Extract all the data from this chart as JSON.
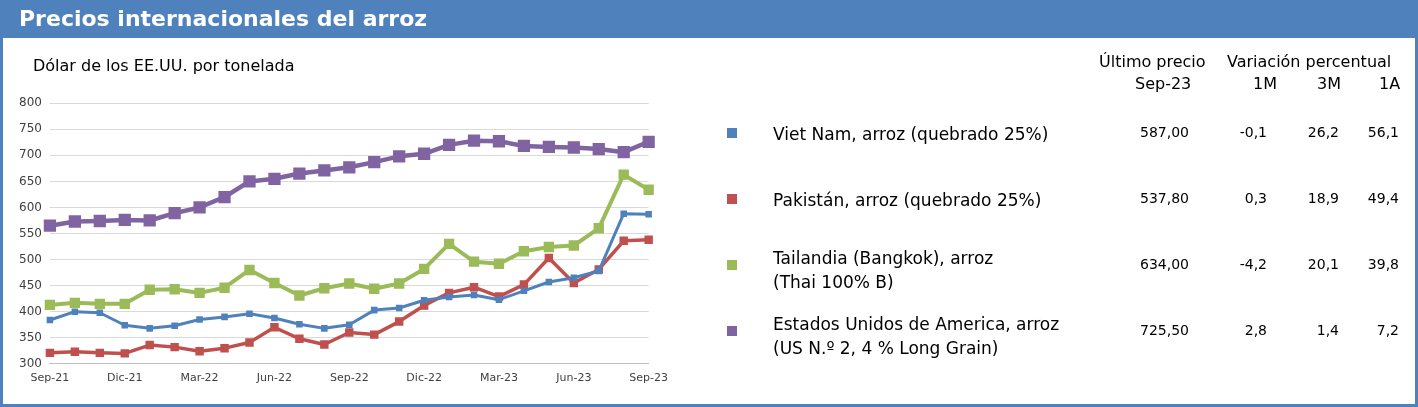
{
  "chart_data": {
    "type": "line",
    "title": "Precios internacionales del arroz",
    "ylabel": "Dólar de los EE.UU. por tonelada",
    "categories": [
      "Sep-21",
      null,
      null,
      "Dic-21",
      null,
      null,
      "Mar-22",
      null,
      null,
      "Jun-22",
      null,
      null,
      "Sep-22",
      null,
      null,
      "Dic-22",
      null,
      null,
      "Mar-23",
      null,
      null,
      "Jun-23",
      null,
      null,
      "Sep-23"
    ],
    "series": [
      {
        "name": "Viet Nam, arroz (quebrado 25%)",
        "color": "#4f81bd",
        "values": [
          384,
          400,
          398,
          374,
          368,
          373,
          385,
          390,
          396,
          388,
          376,
          368,
          375,
          403,
          407,
          422,
          428,
          432,
          423,
          440,
          457,
          465,
          478,
          588,
          587
        ]
      },
      {
        "name": "Pakistán, arroz (quebrado 25%)",
        "color": "#c0504d",
        "values": [
          321,
          323,
          321,
          320,
          336,
          332,
          324,
          330,
          341,
          370,
          348,
          337,
          360,
          356,
          381,
          412,
          436,
          447,
          429,
          452,
          503,
          455,
          481,
          536,
          538
        ]
      },
      {
        "name": "Tailandia (Bangkok), arroz\n(Thai 100% B)",
        "color": "#9bbb59",
        "values": [
          413,
          417,
          415,
          415,
          442,
          443,
          436,
          446,
          480,
          455,
          431,
          445,
          454,
          444,
          454,
          482,
          530,
          496,
          492,
          516,
          524,
          527,
          560,
          663,
          634
        ]
      },
      {
        "name": "Estados Unidos de America, arroz\n(US N.º 2, 4 % Long Grain)",
        "color": "#8064a2",
        "values": [
          565,
          573,
          574,
          576,
          575,
          589,
          600,
          620,
          650,
          655,
          665,
          671,
          677,
          687,
          698,
          703,
          720,
          728,
          727,
          718,
          716,
          715,
          712,
          706,
          726
        ]
      }
    ],
    "ylim": [
      300,
      800
    ],
    "yticks": [
      300,
      350,
      400,
      450,
      500,
      550,
      600,
      650,
      700,
      750,
      800
    ],
    "grid": "y",
    "legend": "right",
    "marker": "square",
    "line_style": "solid",
    "annotations": [
      "Último precio",
      "Sep-23",
      "Variación percentual",
      "1M",
      "3M",
      "1A",
      "587,00",
      "-0,1",
      "26,2",
      "56,1",
      "537,80",
      "0,3",
      "18,9",
      "49,4",
      "634,00",
      "-4,2",
      "20,1",
      "39,8",
      "725,50",
      "2,8",
      "1,4",
      "7,2"
    ]
  }
}
